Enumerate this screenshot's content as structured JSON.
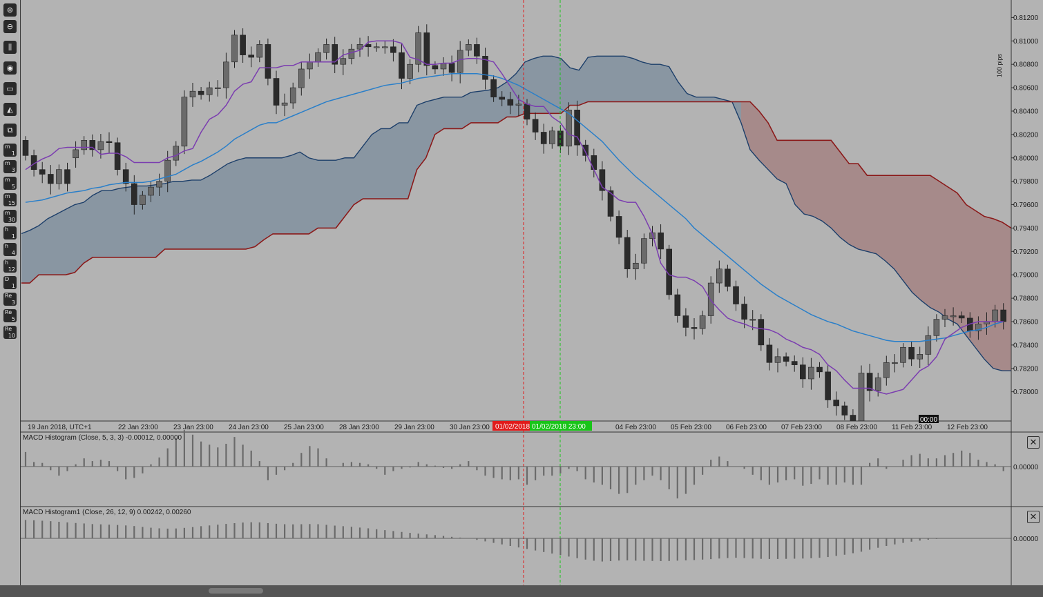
{
  "toolbar": {
    "tools": [
      {
        "name": "zoom-in-icon",
        "glyph": "⊕"
      },
      {
        "name": "zoom-out-icon",
        "glyph": "⊖"
      },
      {
        "name": "candles-icon",
        "glyph": "⫼"
      },
      {
        "name": "template-icon",
        "glyph": "◉"
      },
      {
        "name": "layout-icon",
        "glyph": "▭"
      },
      {
        "name": "drawing-icon",
        "glyph": "◭"
      },
      {
        "name": "screenshot-icon",
        "glyph": "⧉"
      }
    ],
    "timeframes": [
      {
        "a": "m",
        "b": "1"
      },
      {
        "a": "m",
        "b": "3"
      },
      {
        "a": "m",
        "b": "5"
      },
      {
        "a": "m",
        "b": "15"
      },
      {
        "a": "m",
        "b": "30"
      },
      {
        "a": "h",
        "b": "1"
      },
      {
        "a": "h",
        "b": "4"
      },
      {
        "a": "h",
        "b": "12"
      },
      {
        "a": "D",
        "b": "1"
      },
      {
        "a": "Re",
        "b": "3"
      },
      {
        "a": "Re",
        "b": "5"
      },
      {
        "a": "Re",
        "b": "10"
      }
    ]
  },
  "price_axis": {
    "unit_label": "100 pips",
    "ticks": [
      "0.81200",
      "0.81000",
      "0.80800",
      "0.80600",
      "0.80400",
      "0.80200",
      "0.80000",
      "0.79800",
      "0.79600",
      "0.79400",
      "0.79200",
      "0.79000",
      "0.78800",
      "0.78600",
      "0.78400",
      "0.78200",
      "0.78000"
    ]
  },
  "time_axis": {
    "labels": [
      "19 Jan 2018, UTC+1",
      "22 Jan 23:00",
      "23 Jan 23:00",
      "24 Jan 23:00",
      "25 Jan 23:00",
      "28 Jan 23:00",
      "29 Jan 23:00",
      "30 Jan 23:00",
      "04 Feb 23:00",
      "05 Feb 23:00",
      "06 Feb 23:00",
      "07 Feb 23:00",
      "08 Feb 23:00",
      "11 Feb 23:00",
      "12 Feb 23:00"
    ],
    "marker_red": "01/02/2018 23:00",
    "marker_green": "01/02/2018 23:00",
    "crosshair_time": "00:00"
  },
  "indicators": [
    {
      "label": "MACD Histogram (Close, 5, 3, 3) -0.00012, 0.00000",
      "zero_label": "0.00000"
    },
    {
      "label": "MACD Histogram1 (Close, 26, 12, 9) 0.00242, 0.00260",
      "zero_label": "0.00000"
    }
  ],
  "colors": {
    "background": "#b3b3b3",
    "bull": "#6b6b6b",
    "bear": "#2b2b2b",
    "cloud_bull": "#8996a2",
    "cloud_bear": "#a68a8a",
    "span_a": "#1d3f6a",
    "span_b": "#8b1a1a",
    "kijun": "#7b3db0",
    "tenkan": "#2a7fc9",
    "hist": "#6a6a6a",
    "vline_red": "#e01b1b",
    "vline_green": "#18c418"
  },
  "chart_data": {
    "type": "candlestick",
    "price_range": [
      0.7775,
      0.8135
    ],
    "open": [
      0.8015,
      0.8002,
      0.799,
      0.7986,
      0.7978,
      0.799,
      0.8,
      0.8007,
      0.8015,
      0.8007,
      0.8014,
      0.8013,
      0.799,
      0.7978,
      0.796,
      0.7968,
      0.7975,
      0.798,
      0.7998,
      0.801,
      0.8052,
      0.8057,
      0.8054,
      0.806,
      0.806,
      0.8082,
      0.8105,
      0.8088,
      0.8086,
      0.8097,
      0.8068,
      0.8045,
      0.8047,
      0.806,
      0.8076,
      0.8082,
      0.809,
      0.8097,
      0.808,
      0.8085,
      0.8093,
      0.8097,
      0.8095,
      0.8095,
      0.8095,
      0.809,
      0.8068,
      0.808,
      0.8107,
      0.8079,
      0.8076,
      0.8081,
      0.8073,
      0.8092,
      0.8097,
      0.8087,
      0.8067,
      0.8052,
      0.805,
      0.8045,
      0.8046,
      0.8033,
      0.8022,
      0.8012,
      0.8023,
      0.801,
      0.8041,
      0.8011,
      0.8002,
      0.799,
      0.7972,
      0.795,
      0.7932,
      0.7905,
      0.791,
      0.7931,
      0.7936,
      0.7922,
      0.7883,
      0.7865,
      0.7855,
      0.7854,
      0.7865,
      0.7893,
      0.7905,
      0.789,
      0.7875,
      0.7862,
      0.7862,
      0.784,
      0.7825,
      0.783,
      0.7826,
      0.7823,
      0.7811,
      0.7821,
      0.7817,
      0.7793,
      0.7788,
      0.778,
      0.777,
      0.7816,
      0.7801,
      0.7812,
      0.7825,
      0.7825,
      0.7838,
      0.7828,
      0.7832,
      0.7848,
      0.7862,
      0.7865,
      0.7865,
      0.7863,
      0.7852,
      0.7858,
      0.786,
      0.787
    ],
    "close": [
      0.8002,
      0.799,
      0.7986,
      0.7978,
      0.799,
      0.7978,
      0.8007,
      0.8015,
      0.8007,
      0.8014,
      0.8013,
      0.799,
      0.7978,
      0.796,
      0.7968,
      0.7975,
      0.798,
      0.7998,
      0.801,
      0.8052,
      0.8057,
      0.8054,
      0.806,
      0.806,
      0.8082,
      0.8105,
      0.8088,
      0.8086,
      0.8097,
      0.8068,
      0.8045,
      0.8047,
      0.806,
      0.8076,
      0.8082,
      0.809,
      0.8097,
      0.808,
      0.8085,
      0.8093,
      0.8097,
      0.8095,
      0.8095,
      0.8095,
      0.809,
      0.8068,
      0.808,
      0.8107,
      0.8079,
      0.8076,
      0.8081,
      0.8073,
      0.8092,
      0.8097,
      0.8087,
      0.8067,
      0.8052,
      0.805,
      0.8045,
      0.8046,
      0.8033,
      0.8022,
      0.8012,
      0.8023,
      0.801,
      0.8041,
      0.8011,
      0.8002,
      0.799,
      0.7972,
      0.795,
      0.7932,
      0.7905,
      0.791,
      0.7931,
      0.7936,
      0.7922,
      0.7883,
      0.7865,
      0.7855,
      0.7854,
      0.7865,
      0.7893,
      0.7905,
      0.789,
      0.7875,
      0.7862,
      0.7862,
      0.784,
      0.7825,
      0.783,
      0.7826,
      0.7823,
      0.7811,
      0.7821,
      0.7817,
      0.7793,
      0.7788,
      0.778,
      0.777,
      0.7816,
      0.7801,
      0.7812,
      0.7825,
      0.7825,
      0.7838,
      0.7828,
      0.7832,
      0.7848,
      0.7862,
      0.7865,
      0.7865,
      0.7863,
      0.7852,
      0.7858,
      0.786,
      0.787,
      0.786
    ],
    "span_a": [
      0.7935,
      0.7938,
      0.7942,
      0.7948,
      0.7952,
      0.7956,
      0.796,
      0.7962,
      0.7968,
      0.7972,
      0.7972,
      0.7974,
      0.7975,
      0.7976,
      0.7976,
      0.7977,
      0.7978,
      0.798,
      0.798,
      0.7981,
      0.7981,
      0.7985,
      0.799,
      0.7995,
      0.7998,
      0.8,
      0.8,
      0.8,
      0.8,
      0.8,
      0.8002,
      0.8005,
      0.8,
      0.7998,
      0.7998,
      0.7998,
      0.8,
      0.8,
      0.801,
      0.802,
      0.8025,
      0.8025,
      0.803,
      0.803,
      0.8045,
      0.8048,
      0.805,
      0.8052,
      0.8052,
      0.8052,
      0.8056,
      0.8057,
      0.8058,
      0.806,
      0.8065,
      0.8072,
      0.8082,
      0.8085,
      0.8087,
      0.8087,
      0.8085,
      0.8077,
      0.8075,
      0.8086,
      0.8087,
      0.8087,
      0.8087,
      0.8087,
      0.8085,
      0.8082,
      0.808,
      0.808,
      0.8078,
      0.8065,
      0.8055,
      0.8052,
      0.8052,
      0.8052,
      0.805,
      0.8048,
      0.803,
      0.8007,
      0.7998,
      0.799,
      0.7982,
      0.7978,
      0.796,
      0.7952,
      0.795,
      0.7946,
      0.794,
      0.7932,
      0.7926,
      0.7922,
      0.792,
      0.7918,
      0.7912,
      0.7905,
      0.7895,
      0.7885,
      0.7878,
      0.7872,
      0.7868,
      0.7862,
      0.7858,
      0.7848,
      0.7838,
      0.7828,
      0.782,
      0.7818,
      0.7818
    ],
    "span_b": [
      0.7893,
      0.7893,
      0.79,
      0.79,
      0.79,
      0.79,
      0.7902,
      0.791,
      0.7915,
      0.7915,
      0.7915,
      0.7915,
      0.7915,
      0.7915,
      0.7915,
      0.7915,
      0.7922,
      0.7922,
      0.7922,
      0.7922,
      0.7922,
      0.7922,
      0.7922,
      0.7922,
      0.7922,
      0.7922,
      0.7924,
      0.793,
      0.7935,
      0.7935,
      0.7935,
      0.7935,
      0.7935,
      0.794,
      0.794,
      0.794,
      0.795,
      0.796,
      0.7965,
      0.7965,
      0.7965,
      0.7965,
      0.7965,
      0.7965,
      0.799,
      0.8,
      0.802,
      0.8025,
      0.8025,
      0.8025,
      0.803,
      0.803,
      0.803,
      0.803,
      0.8035,
      0.8035,
      0.8038,
      0.8038,
      0.8038,
      0.8038,
      0.8038,
      0.8045,
      0.8045,
      0.8048,
      0.8048,
      0.8048,
      0.8048,
      0.8048,
      0.8048,
      0.8048,
      0.8048,
      0.8048,
      0.8048,
      0.8048,
      0.8048,
      0.8048,
      0.8048,
      0.8048,
      0.8048,
      0.8048,
      0.8048,
      0.8048,
      0.804,
      0.803,
      0.8015,
      0.8015,
      0.8015,
      0.8015,
      0.8015,
      0.8015,
      0.8015,
      0.8005,
      0.7995,
      0.7995,
      0.7985,
      0.7985,
      0.7985,
      0.7985,
      0.7985,
      0.7985,
      0.7985,
      0.7985,
      0.798,
      0.7975,
      0.797,
      0.796,
      0.7955,
      0.795,
      0.7948,
      0.7945,
      0.794,
      0.794
    ],
    "kijun_line": [
      0.799,
      0.7995,
      0.7999,
      0.8002,
      0.8008,
      0.8009,
      0.8009,
      0.8009,
      0.8009,
      0.8003,
      0.8004,
      0.8004,
      0.8001,
      0.7996,
      0.7996,
      0.7996,
      0.7996,
      0.8,
      0.8002,
      0.8006,
      0.8008,
      0.8022,
      0.8033,
      0.8037,
      0.8045,
      0.8057,
      0.8063,
      0.8065,
      0.8077,
      0.8077,
      0.8077,
      0.8079,
      0.8079,
      0.8082,
      0.8082,
      0.8082,
      0.8082,
      0.8082,
      0.8088,
      0.809,
      0.8092,
      0.8099,
      0.81,
      0.81,
      0.81,
      0.8098,
      0.8086,
      0.8084,
      0.808,
      0.808,
      0.8081,
      0.8081,
      0.8084,
      0.8085,
      0.8085,
      0.8084,
      0.8082,
      0.8072,
      0.8061,
      0.805,
      0.8046,
      0.8044,
      0.8044,
      0.8035,
      0.803,
      0.802,
      0.8018,
      0.8005,
      0.799,
      0.7975,
      0.797,
      0.7964,
      0.7962,
      0.7962,
      0.795,
      0.7935,
      0.791,
      0.79,
      0.7898,
      0.7898,
      0.7895,
      0.789,
      0.7878,
      0.787,
      0.7863,
      0.786,
      0.7858,
      0.7855,
      0.7854,
      0.7853,
      0.785,
      0.7845,
      0.7842,
      0.7838,
      0.7836,
      0.7832,
      0.7823,
      0.7818,
      0.781,
      0.7803,
      0.7803,
      0.7803,
      0.78,
      0.7798,
      0.78,
      0.7802,
      0.781,
      0.7818,
      0.7822,
      0.783,
      0.7845,
      0.785,
      0.7855,
      0.7858,
      0.786,
      0.786,
      0.786,
      0.786
    ],
    "tenkan_line": [
      0.7962,
      0.7963,
      0.7964,
      0.7966,
      0.7968,
      0.797,
      0.7971,
      0.7972,
      0.7974,
      0.7975,
      0.7977,
      0.7978,
      0.7979,
      0.7979,
      0.7979,
      0.798,
      0.7982,
      0.7984,
      0.7986,
      0.799,
      0.7994,
      0.7997,
      0.8001,
      0.8005,
      0.801,
      0.8016,
      0.802,
      0.8024,
      0.8028,
      0.803,
      0.803,
      0.8033,
      0.8036,
      0.8039,
      0.8042,
      0.8045,
      0.8048,
      0.805,
      0.8052,
      0.8054,
      0.8056,
      0.8058,
      0.806,
      0.8062,
      0.8063,
      0.8064,
      0.8066,
      0.8068,
      0.8069,
      0.807,
      0.8071,
      0.8072,
      0.8072,
      0.8072,
      0.8072,
      0.8071,
      0.807,
      0.8068,
      0.8065,
      0.8062,
      0.8058,
      0.8054,
      0.805,
      0.8046,
      0.8042,
      0.8038,
      0.8032,
      0.8026,
      0.802,
      0.8014,
      0.8006,
      0.7998,
      0.7991,
      0.7984,
      0.7978,
      0.7972,
      0.7966,
      0.796,
      0.7954,
      0.7948,
      0.794,
      0.7934,
      0.7928,
      0.7922,
      0.7916,
      0.791,
      0.7904,
      0.7898,
      0.7892,
      0.7887,
      0.7882,
      0.7878,
      0.7874,
      0.787,
      0.7866,
      0.7863,
      0.786,
      0.7858,
      0.7855,
      0.7852,
      0.785,
      0.7848,
      0.7846,
      0.7844,
      0.7843,
      0.7843,
      0.7843,
      0.7843,
      0.7844,
      0.7845,
      0.7846,
      0.7848,
      0.785,
      0.7852,
      0.7853,
      0.7855,
      0.7858,
      0.786
    ],
    "macd_hist_1": [
      0.00032,
      0.0001,
      8e-05,
      -8e-05,
      -0.0002,
      -0.0001,
      5e-05,
      0.00018,
      0.00012,
      0.00015,
      0.00012,
      -0.0001,
      -0.00028,
      -0.00025,
      -0.00015,
      5e-05,
      0.0002,
      0.0004,
      0.00062,
      0.0008,
      0.0007,
      0.00055,
      0.00048,
      0.00042,
      0.0005,
      0.00065,
      0.00048,
      0.00035,
      0.00012,
      -0.0003,
      -0.00018,
      -8e-05,
      8e-05,
      0.0003,
      0.00045,
      0.0004,
      0.00018,
      0.0,
      8e-05,
      0.0001,
      8e-05,
      5e-05,
      -5e-05,
      -0.00018,
      -0.0001,
      -5e-05,
      -2e-05,
      0.0001,
      5e-05,
      2e-05,
      -3e-05,
      -5e-05,
      5e-05,
      0.00012,
      -8e-05,
      -0.0002,
      -0.00025,
      -0.00028,
      -0.0003,
      -0.00028,
      -0.0004,
      -0.0003,
      -0.0002,
      -0.0002,
      -0.00015,
      -5e-05,
      -0.0001,
      -0.00028,
      -0.00035,
      -0.0004,
      -0.0005,
      -0.0006,
      -0.00058,
      -0.0004,
      -0.0003,
      -0.0002,
      -0.0003,
      -0.0005,
      -0.0007,
      -0.0006,
      -0.0004,
      -0.00018,
      0.00015,
      0.00022,
      0.00012,
      0.0,
      -5e-05,
      -0.00018,
      -0.0003,
      -0.0004,
      -0.00035,
      -0.0003,
      -0.00028,
      -0.00042,
      -0.00038,
      -0.00028,
      -0.0004,
      -0.0004,
      -0.00035,
      -0.0004,
      -0.0004,
      8e-05,
      0.00018,
      -5e-05,
      0.0,
      0.00015,
      0.00025,
      0.00028,
      0.00018,
      0.00018,
      0.00025,
      0.0003,
      0.00035,
      0.0003,
      0.00015,
      0.0001,
      5e-05,
      -0.0001
    ],
    "macd_hist_2": [
      0.00242,
      0.00238,
      0.00232,
      0.00226,
      0.00218,
      0.0021,
      0.00202,
      0.00196,
      0.00188,
      0.00184,
      0.0018,
      0.00176,
      0.0017,
      0.00162,
      0.0015,
      0.0014,
      0.00132,
      0.00128,
      0.0013,
      0.00138,
      0.00148,
      0.0016,
      0.0017,
      0.0018,
      0.0019,
      0.002,
      0.00208,
      0.00212,
      0.0021,
      0.002,
      0.00192,
      0.00186,
      0.00184,
      0.00186,
      0.00188,
      0.00186,
      0.00178,
      0.00168,
      0.0016,
      0.00152,
      0.00142,
      0.00132,
      0.0012,
      0.00108,
      0.00096,
      0.00084,
      0.00072,
      0.00062,
      0.00052,
      0.00042,
      0.00032,
      0.0002,
      0.0001,
      0.0,
      -0.0002,
      -0.0004,
      -0.0006,
      -0.0008,
      -0.001,
      -0.0012,
      -0.0014,
      -0.0016,
      -0.0018,
      -0.002,
      -0.0022,
      -0.0024,
      -0.00262,
      -0.0028,
      -0.00295,
      -0.00305,
      -0.003,
      -0.00292,
      -0.0029,
      -0.00294,
      -0.00296,
      -0.00298,
      -0.003,
      -0.00298,
      -0.00294,
      -0.0029,
      -0.00286,
      -0.0028,
      -0.00274,
      -0.00266,
      -0.0026,
      -0.00256,
      -0.0026,
      -0.00266,
      -0.0027,
      -0.00272,
      -0.00272,
      -0.0027,
      -0.00268,
      -0.00266,
      -0.00262,
      -0.00256,
      -0.00246,
      -0.00232,
      -0.00216,
      -0.00196,
      -0.00176,
      -0.0015,
      -0.00124,
      -0.001,
      -0.0008,
      -0.0006,
      -0.00044,
      -0.0003,
      -0.00018,
      -8e-05
    ]
  }
}
